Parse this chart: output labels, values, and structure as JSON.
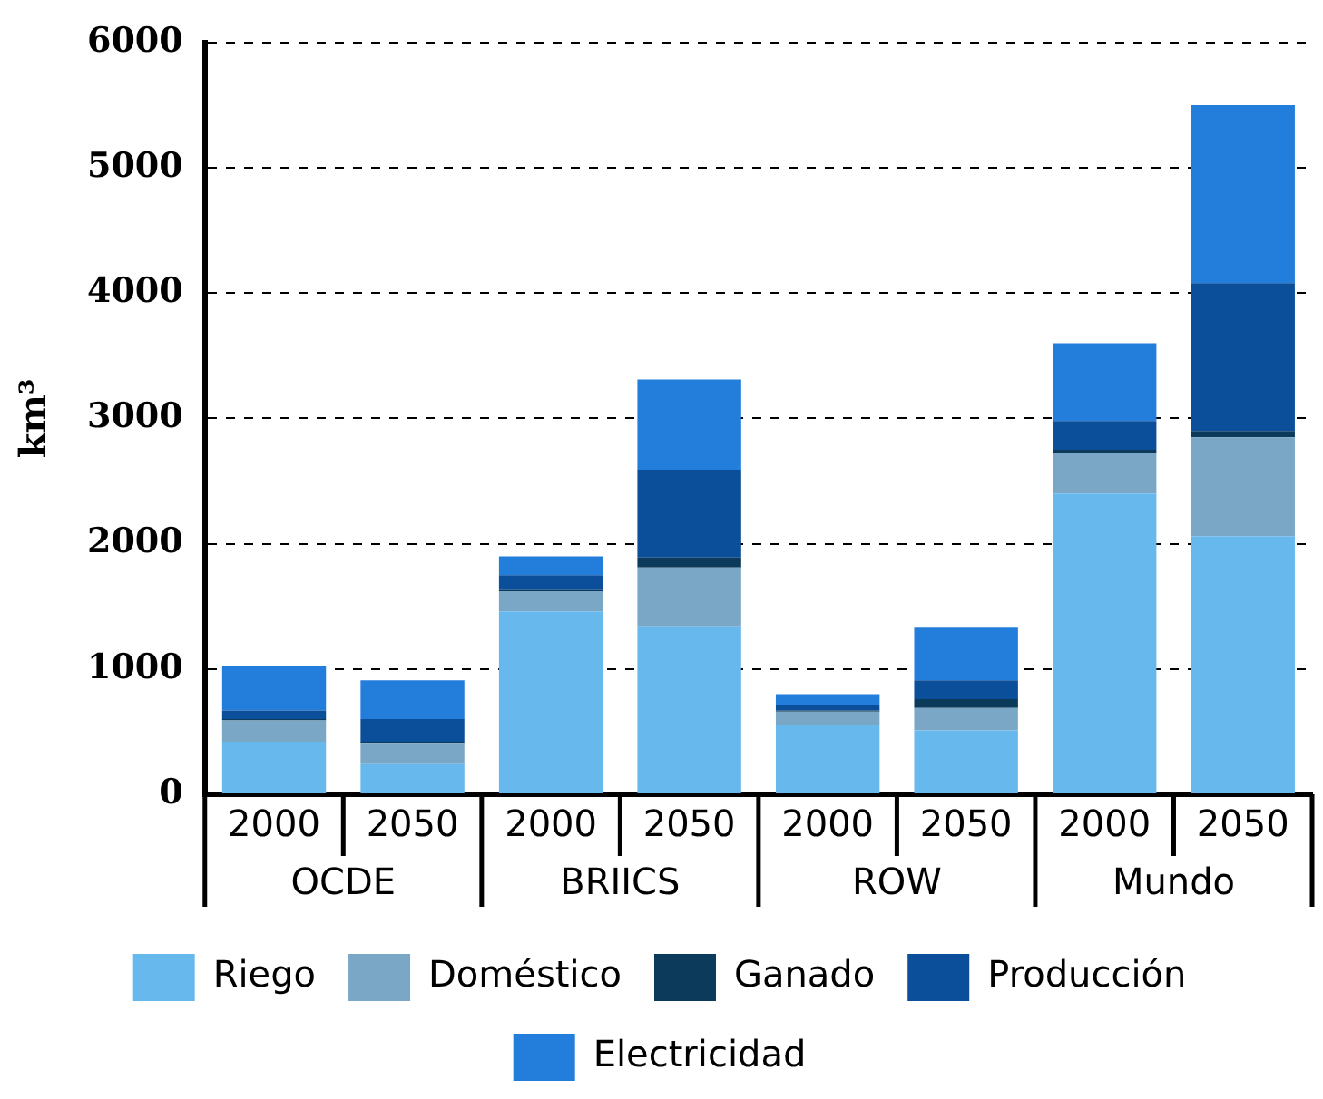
{
  "chart_data": {
    "type": "bar",
    "stacked": true,
    "ylabel": "km³",
    "categories": [
      "2000",
      "2050",
      "2000",
      "2050",
      "2000",
      "2050",
      "2000",
      "2050"
    ],
    "annotations": [
      "OCDE",
      "BRIICS",
      "ROW",
      "Mundo"
    ],
    "series": [
      {
        "name": "Riego",
        "color": "#67b8ed",
        "values": [
          420,
          240,
          1460,
          1340,
          550,
          510,
          2400,
          2060
        ]
      },
      {
        "name": "Doméstico",
        "color": "#7ba7c6",
        "values": [
          170,
          170,
          160,
          470,
          110,
          180,
          320,
          790
        ]
      },
      {
        "name": "Ganado",
        "color": "#0b3a5a",
        "values": [
          10,
          10,
          10,
          80,
          10,
          70,
          30,
          50
        ]
      },
      {
        "name": "Producción",
        "color": "#0b4e9a",
        "values": [
          70,
          180,
          120,
          700,
          40,
          150,
          230,
          1180
        ]
      },
      {
        "name": "Electricidad",
        "color": "#237ddb",
        "values": [
          350,
          310,
          150,
          720,
          90,
          420,
          620,
          1420
        ]
      }
    ],
    "ylim": [
      0,
      6000
    ],
    "yticks": [
      0,
      1000,
      2000,
      3000,
      4000,
      5000,
      6000
    ],
    "grid": "y",
    "legend": "bottom"
  }
}
